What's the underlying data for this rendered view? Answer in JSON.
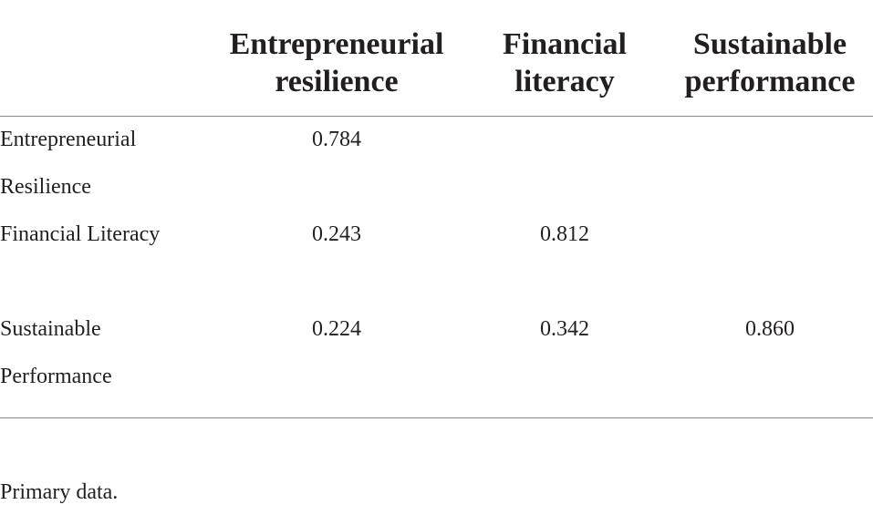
{
  "table": {
    "columns": [
      "Entrepreneurial resilience",
      "Financial literacy",
      "Sustainable performance"
    ],
    "rows": [
      {
        "label": "Entrepreneurial Resilience",
        "values": [
          "0.784"
        ]
      },
      {
        "label": "Financial Literacy",
        "values": [
          "0.243",
          "0.812"
        ]
      },
      {
        "label": "Sustainable Performance",
        "values": [
          "0.224",
          "0.342",
          "0.860"
        ]
      }
    ],
    "footnote": "Primary data."
  }
}
